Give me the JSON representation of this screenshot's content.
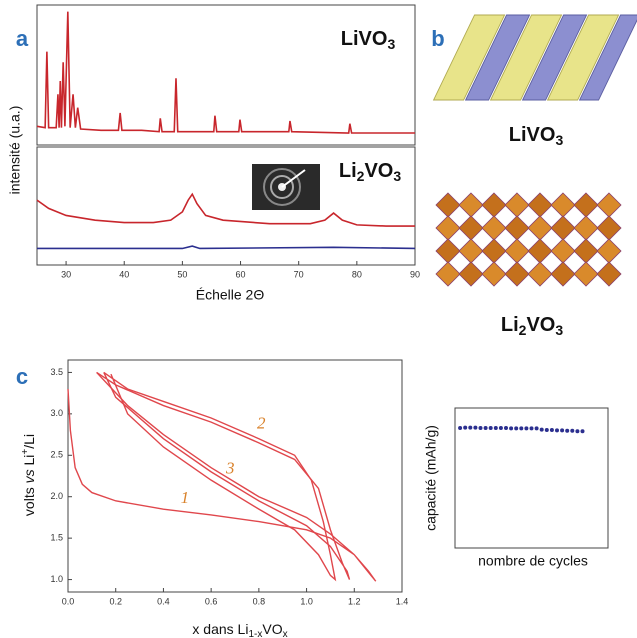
{
  "panel_labels": [
    "a",
    "b",
    "c"
  ],
  "structures": [
    {
      "label": [
        "LiVO",
        "3"
      ]
    },
    {
      "label": [
        "Li",
        "2",
        "VO",
        "3"
      ]
    }
  ],
  "chart_data": [
    {
      "type": "line",
      "label": [
        "LiVO",
        "3"
      ],
      "xlim": [
        25,
        90
      ],
      "ylim": [
        0,
        105
      ],
      "series": [
        {
          "color": "#c8262c",
          "x": [
            25,
            26.4,
            26.7,
            27.0,
            28.3,
            28.6,
            28.8,
            29.0,
            29.2,
            29.5,
            29.8,
            30.3,
            30.7,
            31.2,
            31.6,
            32.0,
            32.5,
            36,
            39.0,
            39.3,
            39.6,
            43,
            46.0,
            46.2,
            46.5,
            48.6,
            48.9,
            49.2,
            52,
            55.4,
            55.6,
            55.9,
            59.7,
            59.9,
            60.2,
            68.3,
            68.5,
            68.8,
            78.6,
            78.8,
            79.1,
            90
          ],
          "values": [
            14,
            13,
            70,
            13,
            13,
            38,
            13,
            48,
            13,
            62,
            14,
            100,
            13,
            38,
            13,
            28,
            12,
            11,
            11,
            24,
            11,
            11,
            10,
            20,
            10,
            10,
            50,
            10,
            10,
            10,
            22,
            10,
            10,
            19,
            10,
            10,
            18,
            10,
            9,
            16,
            9,
            9
          ]
        }
      ]
    },
    {
      "type": "line",
      "label": [
        "Li",
        "2",
        "VO",
        "3"
      ],
      "xlim": [
        25,
        90
      ],
      "ylim": [
        0,
        100
      ],
      "xticks": [
        30,
        40,
        50,
        60,
        70,
        80,
        90
      ],
      "x_label": "Échelle 2Θ",
      "y_label": "intensité (u.a.)",
      "series": [
        {
          "color": "#c8262c",
          "x": [
            25,
            27,
            30,
            35,
            40,
            45,
            48,
            50,
            51,
            51.7,
            52.5,
            54,
            57,
            65,
            72,
            74.5,
            76,
            77.5,
            80,
            85,
            90
          ],
          "values": [
            55,
            48,
            42,
            38,
            36,
            36,
            38,
            45,
            55,
            60,
            52,
            42,
            38,
            35,
            35,
            38,
            44,
            38,
            34,
            33,
            33
          ]
        },
        {
          "color": "#2b2f8f",
          "x": [
            25,
            50,
            51.7,
            53,
            76,
            90
          ],
          "values": [
            14,
            14,
            16,
            14,
            15,
            14
          ]
        }
      ]
    },
    {
      "type": "line",
      "xlim": [
        0,
        1.4
      ],
      "ylim": [
        0.85,
        3.65
      ],
      "xticks": [
        {
          "value": 0,
          "label": "0.0"
        },
        0.2,
        0.4,
        0.6,
        0.8,
        {
          "value": 1,
          "label": "1.0"
        },
        1.2,
        1.4
      ],
      "yticks": [
        {
          "value": 1,
          "label": "1.0"
        },
        1.5,
        {
          "value": 2,
          "label": "2.0"
        },
        2.5,
        {
          "value": 3,
          "label": "3.0"
        },
        3.5
      ],
      "x_label": [
        "x dans Li",
        "1-x",
        "VO",
        "x"
      ],
      "y_label": [
        "volts ",
        "vs",
        " Li",
        "+",
        "/Li"
      ],
      "annotations": [
        {
          "text": "1",
          "x": 0.49,
          "y": 1.97
        },
        {
          "text": "2",
          "x": 0.81,
          "y": 2.87
        },
        {
          "text": "3",
          "x": 0.68,
          "y": 2.33
        }
      ],
      "series": [
        {
          "color": "#e0474c",
          "x": [
            0,
            0.01,
            0.03,
            0.06,
            0.1,
            0.2,
            0.4,
            0.6,
            0.8,
            1.0,
            1.1,
            1.2,
            1.26,
            1.29,
            1.27,
            1.2,
            1.1,
            1.0,
            0.8,
            0.6,
            0.4,
            0.25,
            0.12
          ],
          "values": [
            3.3,
            2.8,
            2.35,
            2.15,
            2.05,
            1.95,
            1.85,
            1.78,
            1.7,
            1.6,
            1.5,
            1.3,
            1.1,
            0.98,
            1.05,
            1.3,
            1.55,
            1.75,
            2.0,
            2.35,
            2.75,
            3.1,
            3.5
          ]
        },
        {
          "color": "#e0474c",
          "x": [
            0.12,
            0.2,
            0.4,
            0.6,
            0.8,
            0.95,
            1.05,
            1.1,
            1.15,
            1.18,
            1.17,
            1.1,
            1.0,
            0.8,
            0.6,
            0.4,
            0.2,
            0.15
          ],
          "values": [
            3.5,
            3.35,
            3.1,
            2.9,
            2.65,
            2.45,
            2.1,
            1.6,
            1.2,
            1.0,
            1.1,
            1.4,
            1.65,
            1.95,
            2.3,
            2.7,
            3.2,
            3.5
          ]
        },
        {
          "color": "#e0474c",
          "x": [
            0.15,
            0.25,
            0.4,
            0.6,
            0.8,
            0.95,
            1.02,
            1.07,
            1.1,
            1.12,
            1.1,
            1.05,
            0.95,
            0.8,
            0.6,
            0.4,
            0.25,
            0.18
          ],
          "values": [
            3.5,
            3.3,
            3.15,
            2.95,
            2.7,
            2.5,
            2.2,
            1.7,
            1.3,
            1.0,
            1.05,
            1.3,
            1.6,
            1.85,
            2.2,
            2.6,
            3.0,
            3.48
          ]
        }
      ]
    },
    {
      "type": "scatter",
      "x_label": "nombre de cycles",
      "y_label": "capacité (mAh/g)",
      "xlim": [
        0,
        30
      ],
      "ylim": [
        0,
        350
      ],
      "series": [
        {
          "color": "#2b2f8f",
          "x": [
            1,
            2,
            3,
            4,
            5,
            6,
            7,
            8,
            9,
            10,
            11,
            12,
            13,
            14,
            15,
            16,
            17,
            18,
            19,
            20,
            21,
            22,
            23,
            24,
            25
          ],
          "values": [
            300,
            301,
            301,
            301,
            300,
            300,
            300,
            300,
            300,
            300,
            299,
            299,
            299,
            299,
            299,
            299,
            296,
            295,
            295,
            294,
            294,
            293,
            293,
            292,
            292
          ]
        }
      ]
    }
  ]
}
